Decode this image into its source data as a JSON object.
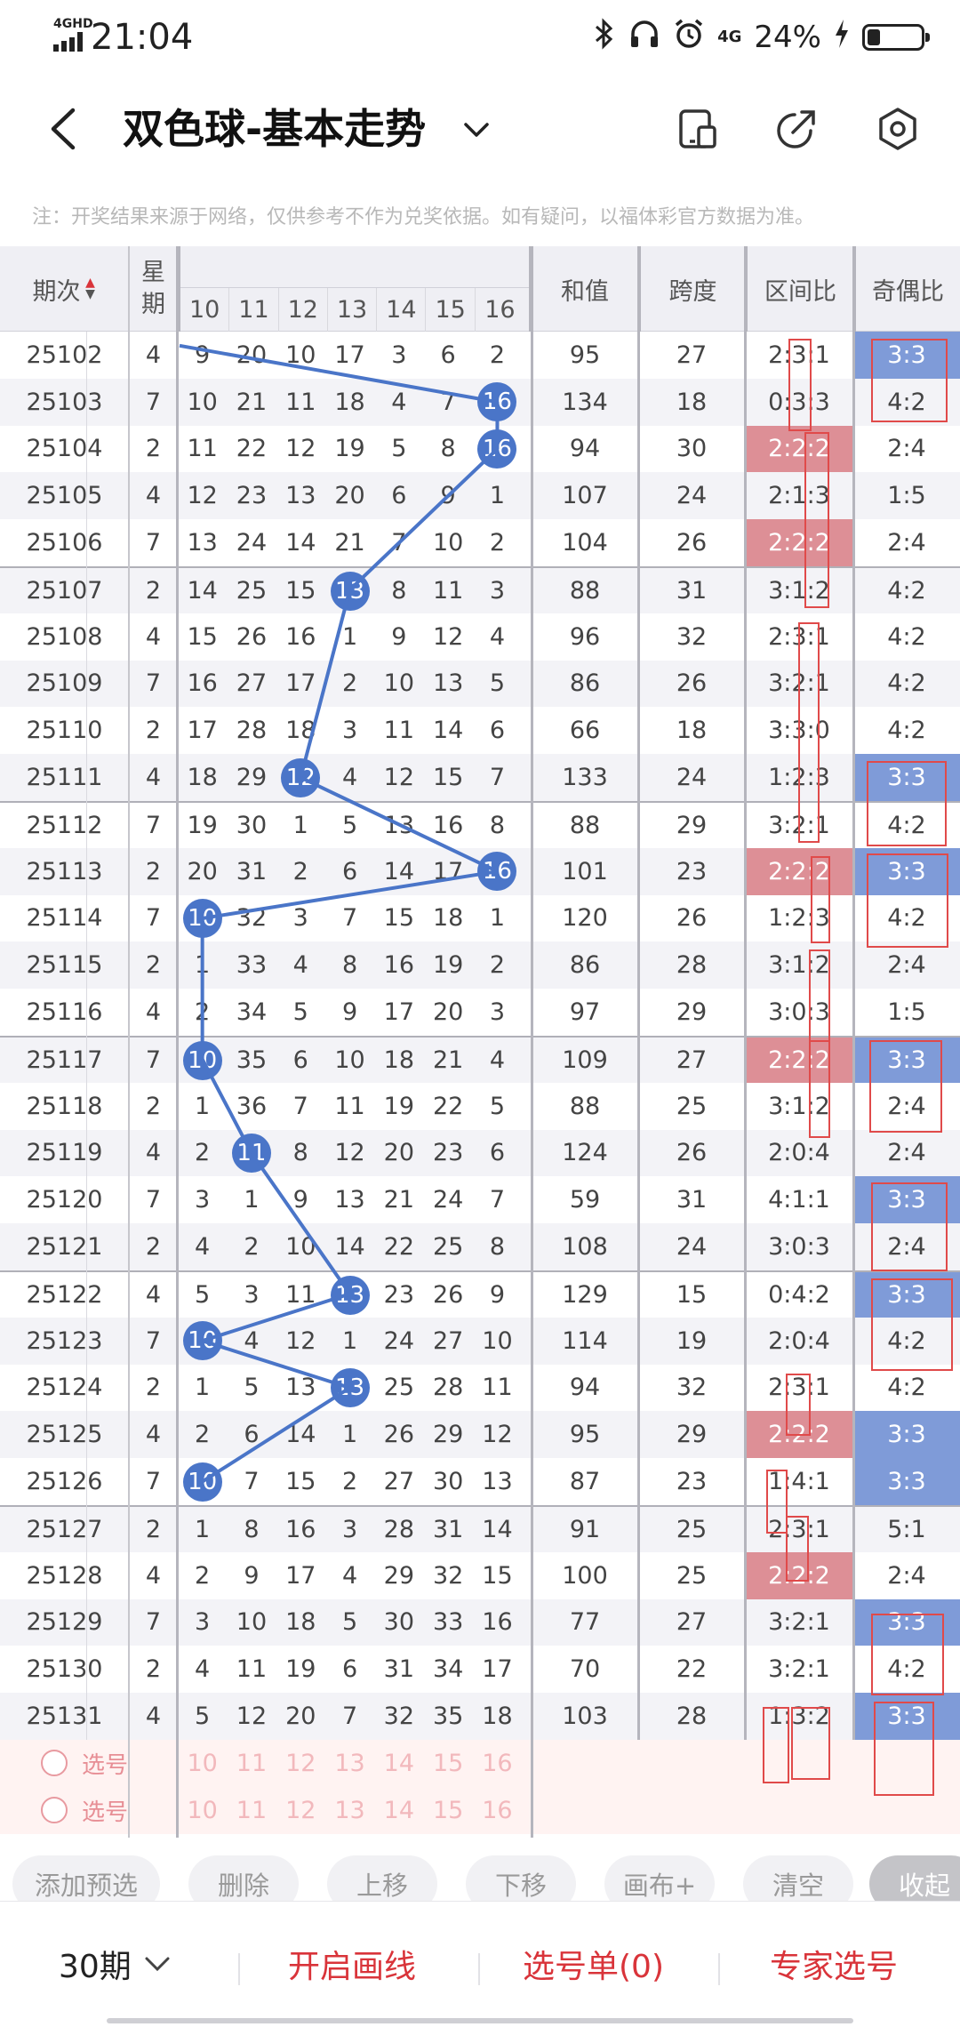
{
  "status": {
    "network": "4GHD",
    "time": "21:04",
    "net2": "4G",
    "battery": "24%",
    "battery_level": 0.24
  },
  "nav": {
    "title": "双色球-基本走势",
    "icons": [
      "back-icon",
      "chevron-down-icon",
      "phone-icon",
      "share-icon",
      "settings-icon"
    ]
  },
  "notice": "注：开奖结果来源于网络，仅供参考不作为兑奖依据。如有疑问，以福体彩官方数据为准。",
  "table": {
    "headers": {
      "period": "期次",
      "week_1": "星",
      "week_2": "期",
      "sum": "和值",
      "span": "跨度",
      "zone": "区间比",
      "odd": "奇偶比",
      "cols": [
        "10",
        "11",
        "12",
        "13",
        "14",
        "15",
        "16"
      ]
    },
    "rows": [
      {
        "p": "25102",
        "w": "4",
        "n": [
          "9",
          "20",
          "10",
          "17",
          "3",
          "6",
          "2"
        ],
        "s": "95",
        "k": "27",
        "z": "2:3:1",
        "o": "3:3",
        "zh": false,
        "oh": true
      },
      {
        "p": "25103",
        "w": "7",
        "n": [
          "10",
          "21",
          "11",
          "18",
          "4",
          "7",
          "16"
        ],
        "s": "134",
        "k": "18",
        "z": "0:3:3",
        "o": "4:2",
        "zh": false,
        "oh": false
      },
      {
        "p": "25104",
        "w": "2",
        "n": [
          "11",
          "22",
          "12",
          "19",
          "5",
          "8",
          "16"
        ],
        "s": "94",
        "k": "30",
        "z": "2:2:2",
        "o": "2:4",
        "zh": true,
        "oh": false
      },
      {
        "p": "25105",
        "w": "4",
        "n": [
          "12",
          "23",
          "13",
          "20",
          "6",
          "9",
          "1"
        ],
        "s": "107",
        "k": "24",
        "z": "2:1:3",
        "o": "1:5",
        "zh": false,
        "oh": false
      },
      {
        "p": "25106",
        "w": "7",
        "n": [
          "13",
          "24",
          "14",
          "21",
          "7",
          "10",
          "2"
        ],
        "s": "104",
        "k": "26",
        "z": "2:2:2",
        "o": "2:4",
        "zh": true,
        "oh": false
      },
      {
        "p": "25107",
        "w": "2",
        "n": [
          "14",
          "25",
          "15",
          "13",
          "8",
          "11",
          "3"
        ],
        "s": "88",
        "k": "31",
        "z": "3:1:2",
        "o": "4:2",
        "zh": false,
        "oh": false
      },
      {
        "p": "25108",
        "w": "4",
        "n": [
          "15",
          "26",
          "16",
          "1",
          "9",
          "12",
          "4"
        ],
        "s": "96",
        "k": "32",
        "z": "2:3:1",
        "o": "4:2",
        "zh": false,
        "oh": false
      },
      {
        "p": "25109",
        "w": "7",
        "n": [
          "16",
          "27",
          "17",
          "2",
          "10",
          "13",
          "5"
        ],
        "s": "86",
        "k": "26",
        "z": "3:2:1",
        "o": "4:2",
        "zh": false,
        "oh": false
      },
      {
        "p": "25110",
        "w": "2",
        "n": [
          "17",
          "28",
          "18",
          "3",
          "11",
          "14",
          "6"
        ],
        "s": "66",
        "k": "18",
        "z": "3:3:0",
        "o": "4:2",
        "zh": false,
        "oh": false
      },
      {
        "p": "25111",
        "w": "4",
        "n": [
          "18",
          "29",
          "12",
          "4",
          "12",
          "15",
          "7"
        ],
        "s": "133",
        "k": "24",
        "z": "1:2:3",
        "o": "3:3",
        "zh": false,
        "oh": true
      },
      {
        "p": "25112",
        "w": "7",
        "n": [
          "19",
          "30",
          "1",
          "5",
          "13",
          "16",
          "8"
        ],
        "s": "88",
        "k": "29",
        "z": "3:2:1",
        "o": "4:2",
        "zh": false,
        "oh": false
      },
      {
        "p": "25113",
        "w": "2",
        "n": [
          "20",
          "31",
          "2",
          "6",
          "14",
          "17",
          "16"
        ],
        "s": "101",
        "k": "23",
        "z": "2:2:2",
        "o": "3:3",
        "zh": true,
        "oh": true
      },
      {
        "p": "25114",
        "w": "7",
        "n": [
          "10",
          "32",
          "3",
          "7",
          "15",
          "18",
          "1"
        ],
        "s": "120",
        "k": "26",
        "z": "1:2:3",
        "o": "4:2",
        "zh": false,
        "oh": false
      },
      {
        "p": "25115",
        "w": "2",
        "n": [
          "1",
          "33",
          "4",
          "8",
          "16",
          "19",
          "2"
        ],
        "s": "86",
        "k": "28",
        "z": "3:1:2",
        "o": "2:4",
        "zh": false,
        "oh": false
      },
      {
        "p": "25116",
        "w": "4",
        "n": [
          "2",
          "34",
          "5",
          "9",
          "17",
          "20",
          "3"
        ],
        "s": "97",
        "k": "29",
        "z": "3:0:3",
        "o": "1:5",
        "zh": false,
        "oh": false
      },
      {
        "p": "25117",
        "w": "7",
        "n": [
          "10",
          "35",
          "6",
          "10",
          "18",
          "21",
          "4"
        ],
        "s": "109",
        "k": "27",
        "z": "2:2:2",
        "o": "3:3",
        "zh": true,
        "oh": true
      },
      {
        "p": "25118",
        "w": "2",
        "n": [
          "1",
          "36",
          "7",
          "11",
          "19",
          "22",
          "5"
        ],
        "s": "88",
        "k": "25",
        "z": "3:1:2",
        "o": "2:4",
        "zh": false,
        "oh": false
      },
      {
        "p": "25119",
        "w": "4",
        "n": [
          "2",
          "11",
          "8",
          "12",
          "20",
          "23",
          "6"
        ],
        "s": "124",
        "k": "26",
        "z": "2:0:4",
        "o": "2:4",
        "zh": false,
        "oh": false
      },
      {
        "p": "25120",
        "w": "7",
        "n": [
          "3",
          "1",
          "9",
          "13",
          "21",
          "24",
          "7"
        ],
        "s": "59",
        "k": "31",
        "z": "4:1:1",
        "o": "3:3",
        "zh": false,
        "oh": true
      },
      {
        "p": "25121",
        "w": "2",
        "n": [
          "4",
          "2",
          "10",
          "14",
          "22",
          "25",
          "8"
        ],
        "s": "108",
        "k": "24",
        "z": "3:0:3",
        "o": "2:4",
        "zh": false,
        "oh": false
      },
      {
        "p": "25122",
        "w": "4",
        "n": [
          "5",
          "3",
          "11",
          "13",
          "23",
          "26",
          "9"
        ],
        "s": "129",
        "k": "15",
        "z": "0:4:2",
        "o": "3:3",
        "zh": false,
        "oh": true
      },
      {
        "p": "25123",
        "w": "7",
        "n": [
          "10",
          "4",
          "12",
          "1",
          "24",
          "27",
          "10"
        ],
        "s": "114",
        "k": "19",
        "z": "2:0:4",
        "o": "4:2",
        "zh": false,
        "oh": false
      },
      {
        "p": "25124",
        "w": "2",
        "n": [
          "1",
          "5",
          "13",
          "13",
          "25",
          "28",
          "11"
        ],
        "s": "94",
        "k": "32",
        "z": "2:3:1",
        "o": "4:2",
        "zh": false,
        "oh": false
      },
      {
        "p": "25125",
        "w": "4",
        "n": [
          "2",
          "6",
          "14",
          "1",
          "26",
          "29",
          "12"
        ],
        "s": "95",
        "k": "29",
        "z": "2:2:2",
        "o": "3:3",
        "zh": true,
        "oh": true
      },
      {
        "p": "25126",
        "w": "7",
        "n": [
          "10",
          "7",
          "15",
          "2",
          "27",
          "30",
          "13"
        ],
        "s": "87",
        "k": "23",
        "z": "1:4:1",
        "o": "3:3",
        "zh": false,
        "oh": true
      },
      {
        "p": "25127",
        "w": "2",
        "n": [
          "1",
          "8",
          "16",
          "3",
          "28",
          "31",
          "14"
        ],
        "s": "91",
        "k": "25",
        "z": "2:3:1",
        "o": "5:1",
        "zh": false,
        "oh": false
      },
      {
        "p": "25128",
        "w": "4",
        "n": [
          "2",
          "9",
          "17",
          "4",
          "29",
          "32",
          "15"
        ],
        "s": "100",
        "k": "25",
        "z": "2:2:2",
        "o": "2:4",
        "zh": true,
        "oh": false
      },
      {
        "p": "25129",
        "w": "7",
        "n": [
          "3",
          "10",
          "18",
          "5",
          "30",
          "33",
          "16"
        ],
        "s": "77",
        "k": "27",
        "z": "3:2:1",
        "o": "3:3",
        "zh": false,
        "oh": true
      },
      {
        "p": "25130",
        "w": "2",
        "n": [
          "4",
          "11",
          "19",
          "6",
          "31",
          "34",
          "17"
        ],
        "s": "70",
        "k": "22",
        "z": "3:2:1",
        "o": "4:2",
        "zh": false,
        "oh": false
      },
      {
        "p": "25131",
        "w": "4",
        "n": [
          "5",
          "12",
          "20",
          "7",
          "32",
          "35",
          "18"
        ],
        "s": "103",
        "k": "28",
        "z": "1:3:2",
        "o": "3:3",
        "zh": false,
        "oh": true
      }
    ],
    "hits": [
      {
        "r": 1,
        "c": 6
      },
      {
        "r": 2,
        "c": 6
      },
      {
        "r": 5,
        "c": 3
      },
      {
        "r": 9,
        "c": 2
      },
      {
        "r": 11,
        "c": 6
      },
      {
        "r": 12,
        "c": 0
      },
      {
        "r": 15,
        "c": 0
      },
      {
        "r": 17,
        "c": 1
      },
      {
        "r": 20,
        "c": 3
      },
      {
        "r": 21,
        "c": 0
      },
      {
        "r": 22,
        "c": 3
      },
      {
        "r": 24,
        "c": 0
      }
    ],
    "pick_label": "选号",
    "pick_nums": [
      "10",
      "11",
      "12",
      "13",
      "14",
      "15",
      "16"
    ]
  },
  "actions": [
    "添加预选",
    "删除",
    "上移",
    "下移",
    "画布+",
    "清空",
    "收起"
  ],
  "bottom": {
    "periods": "30期",
    "draw_line": "开启画线",
    "pick_list": "选号单(0)",
    "expert": "专家选号"
  },
  "colors": {
    "ball": "#4a75c8",
    "zone_highlight": "#dd8f96",
    "odd_highlight": "#7f9bd8",
    "accent_red": "#d9343a"
  }
}
